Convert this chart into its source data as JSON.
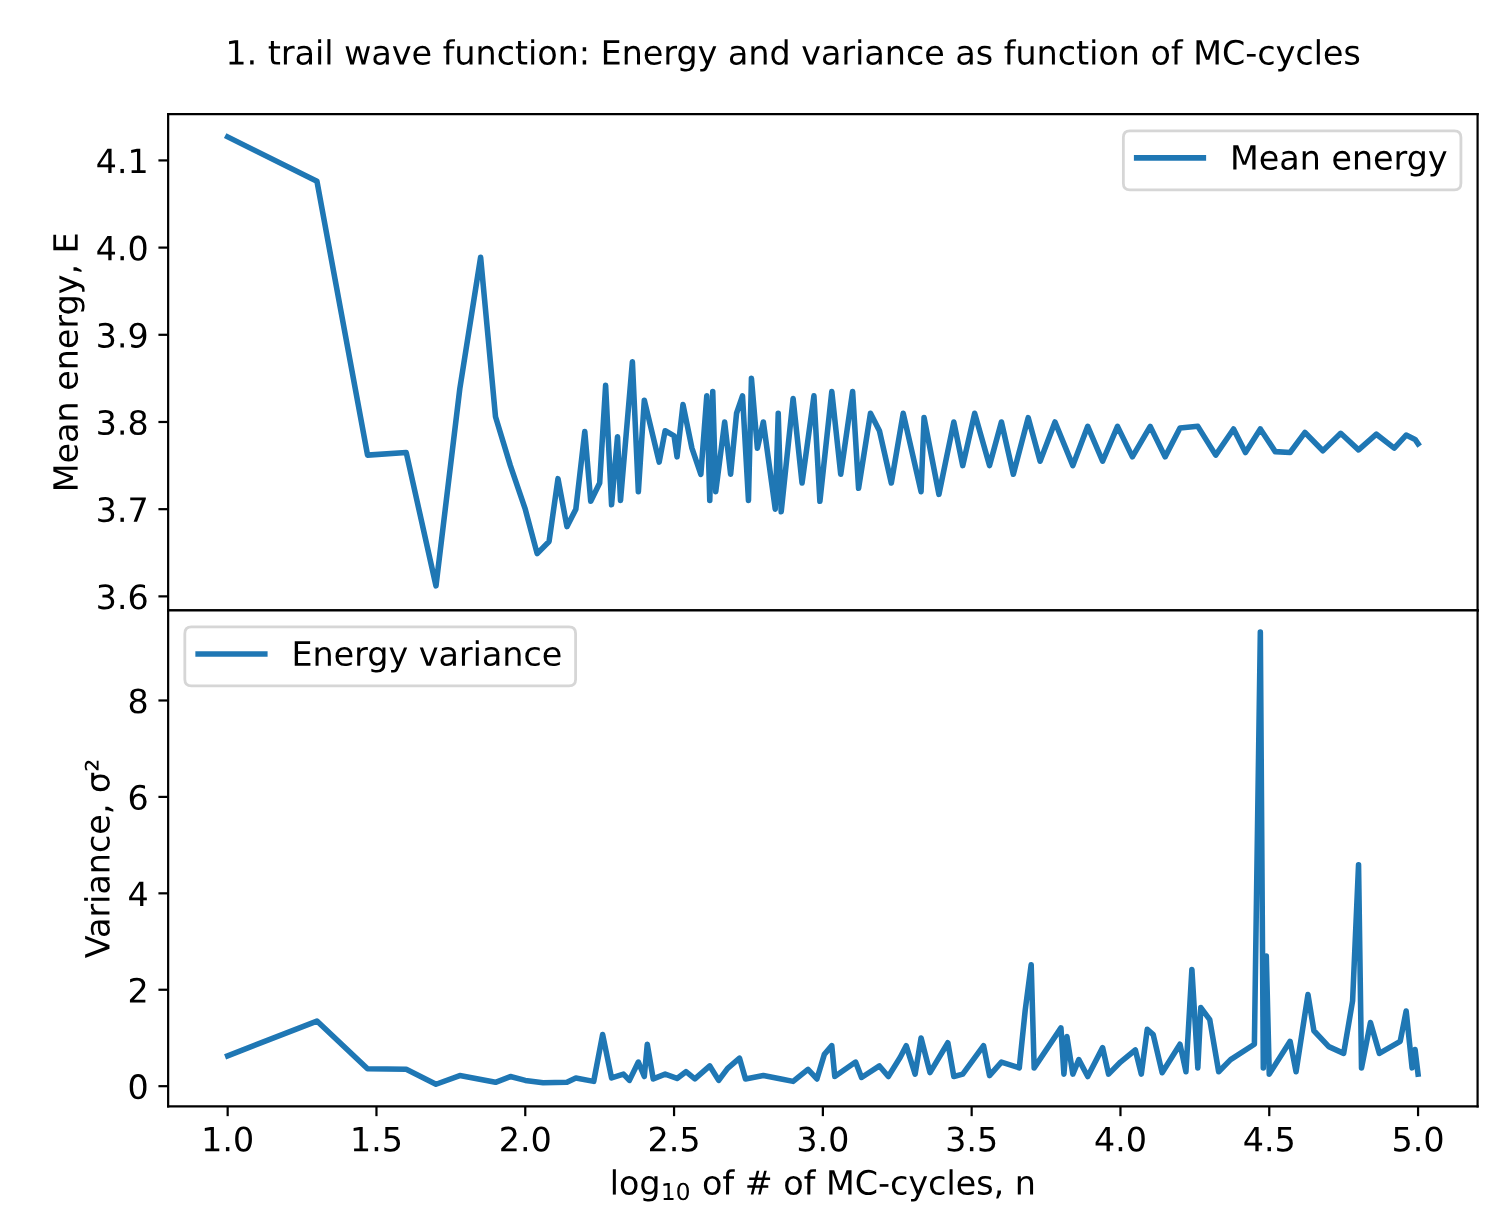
{
  "chart_data": [
    {
      "type": "line",
      "title": "1. trail wave function: Energy and variance as function of MC-cycles",
      "ylabel": "Mean energy, E",
      "xlim": [
        0.8,
        5.2
      ],
      "ylim": [
        3.584,
        4.153
      ],
      "yticks": [
        3.6,
        3.7,
        3.8,
        3.9,
        {
          "value": 4.0,
          "label": "4.0"
        },
        4.1
      ],
      "tick_labels": "y",
      "legend": "top right",
      "grid": false,
      "series": [
        {
          "name": "Mean energy",
          "color": "#1f77b4",
          "x": [
            1.0,
            1.3,
            1.47,
            1.6,
            1.7,
            1.78,
            1.85,
            1.9,
            1.95,
            2.0,
            2.04,
            2.08,
            2.11,
            2.14,
            2.17,
            2.2,
            2.22,
            2.25,
            2.27,
            2.29,
            2.31,
            2.32,
            2.36,
            2.38,
            2.4,
            2.45,
            2.47,
            2.5,
            2.51,
            2.53,
            2.56,
            2.59,
            2.61,
            2.62,
            2.63,
            2.64,
            2.67,
            2.69,
            2.71,
            2.73,
            2.75,
            2.76,
            2.78,
            2.8,
            2.84,
            2.85,
            2.86,
            2.9,
            2.93,
            2.97,
            2.99,
            3.03,
            3.06,
            3.1,
            3.12,
            3.16,
            3.19,
            3.23,
            3.27,
            3.33,
            3.34,
            3.39,
            3.44,
            3.47,
            3.51,
            3.56,
            3.6,
            3.64,
            3.69,
            3.73,
            3.78,
            3.84,
            3.89,
            3.94,
            3.99,
            4.04,
            4.1,
            4.15,
            4.2,
            4.26,
            4.32,
            4.38,
            4.42,
            4.47,
            4.52,
            4.57,
            4.62,
            4.68,
            4.74,
            4.8,
            4.86,
            4.92,
            4.96,
            4.99,
            5.0
          ],
          "values": [
            4.127,
            4.076,
            3.762,
            3.765,
            3.612,
            3.838,
            3.989,
            3.806,
            3.75,
            3.7,
            3.649,
            3.663,
            3.735,
            3.68,
            3.7,
            3.789,
            3.709,
            3.73,
            3.842,
            3.705,
            3.783,
            3.71,
            3.869,
            3.72,
            3.825,
            3.754,
            3.79,
            3.784,
            3.76,
            3.82,
            3.77,
            3.74,
            3.83,
            3.71,
            3.835,
            3.72,
            3.8,
            3.74,
            3.81,
            3.83,
            3.71,
            3.85,
            3.77,
            3.8,
            3.7,
            3.81,
            3.697,
            3.827,
            3.73,
            3.83,
            3.709,
            3.835,
            3.74,
            3.835,
            3.724,
            3.81,
            3.79,
            3.73,
            3.81,
            3.72,
            3.805,
            3.717,
            3.8,
            3.75,
            3.81,
            3.75,
            3.8,
            3.74,
            3.805,
            3.755,
            3.8,
            3.75,
            3.795,
            3.755,
            3.795,
            3.76,
            3.795,
            3.76,
            3.793,
            3.795,
            3.762,
            3.792,
            3.765,
            3.792,
            3.766,
            3.765,
            3.788,
            3.767,
            3.787,
            3.768,
            3.786,
            3.77,
            3.785,
            3.78,
            3.775
          ]
        }
      ]
    },
    {
      "type": "line",
      "xlabel": "log$_{10}$ of # of MC-cycles, n",
      "ylabel": "Variance, σ²",
      "xlim": [
        0.8,
        5.2
      ],
      "xticks": [
        {
          "value": 1.0,
          "label": "1.0"
        },
        1.5,
        {
          "value": 2.0,
          "label": "2.0"
        },
        2.5,
        {
          "value": 3.0,
          "label": "3.0"
        },
        3.5,
        {
          "value": 4.0,
          "label": "4.0"
        },
        4.5,
        {
          "value": 5.0,
          "label": "5.0"
        }
      ],
      "ylim": [
        -0.42,
        9.87
      ],
      "yticks": [
        0,
        2,
        4,
        6,
        8
      ],
      "legend": "top left",
      "grid": false,
      "series": [
        {
          "name": "Energy variance",
          "color": "#1f77b4",
          "x": [
            1.0,
            1.3,
            1.47,
            1.6,
            1.7,
            1.78,
            1.9,
            1.95,
            2.0,
            2.06,
            2.14,
            2.17,
            2.23,
            2.26,
            2.29,
            2.33,
            2.35,
            2.38,
            2.4,
            2.41,
            2.43,
            2.47,
            2.51,
            2.54,
            2.57,
            2.62,
            2.65,
            2.68,
            2.72,
            2.74,
            2.8,
            2.86,
            2.9,
            2.95,
            2.98,
            3.005,
            3.03,
            3.04,
            3.11,
            3.13,
            3.19,
            3.22,
            3.26,
            3.28,
            3.31,
            3.33,
            3.36,
            3.42,
            3.44,
            3.47,
            3.54,
            3.56,
            3.6,
            3.66,
            3.68,
            3.7,
            3.71,
            3.8,
            3.81,
            3.82,
            3.84,
            3.86,
            3.89,
            3.94,
            3.96,
            4.0,
            4.05,
            4.07,
            4.09,
            4.11,
            4.14,
            4.2,
            4.22,
            4.24,
            4.26,
            4.27,
            4.3,
            4.33,
            4.37,
            4.45,
            4.47,
            4.48,
            4.49,
            4.5,
            4.57,
            4.59,
            4.63,
            4.65,
            4.7,
            4.75,
            4.78,
            4.8,
            4.81,
            4.84,
            4.87,
            4.94,
            4.96,
            4.98,
            4.99,
            5.0
          ],
          "values": [
            0.63,
            1.35,
            0.36,
            0.35,
            0.04,
            0.22,
            0.08,
            0.2,
            0.12,
            0.07,
            0.08,
            0.17,
            0.1,
            1.07,
            0.17,
            0.25,
            0.12,
            0.5,
            0.2,
            0.87,
            0.15,
            0.25,
            0.16,
            0.3,
            0.15,
            0.42,
            0.12,
            0.37,
            0.58,
            0.15,
            0.22,
            0.15,
            0.1,
            0.35,
            0.15,
            0.66,
            0.84,
            0.2,
            0.5,
            0.18,
            0.42,
            0.2,
            0.6,
            0.84,
            0.25,
            1.0,
            0.28,
            0.9,
            0.2,
            0.25,
            0.84,
            0.22,
            0.5,
            0.38,
            1.58,
            2.52,
            0.38,
            1.21,
            0.25,
            1.03,
            0.25,
            0.55,
            0.2,
            0.8,
            0.25,
            0.5,
            0.75,
            0.25,
            1.18,
            1.07,
            0.28,
            0.87,
            0.3,
            2.42,
            0.38,
            1.63,
            1.38,
            0.3,
            0.55,
            0.87,
            9.42,
            0.38,
            2.7,
            0.25,
            0.93,
            0.3,
            1.9,
            1.15,
            0.82,
            0.68,
            1.77,
            4.59,
            0.38,
            1.32,
            0.68,
            0.93,
            1.56,
            0.38,
            0.76,
            0.25
          ]
        }
      ]
    }
  ]
}
